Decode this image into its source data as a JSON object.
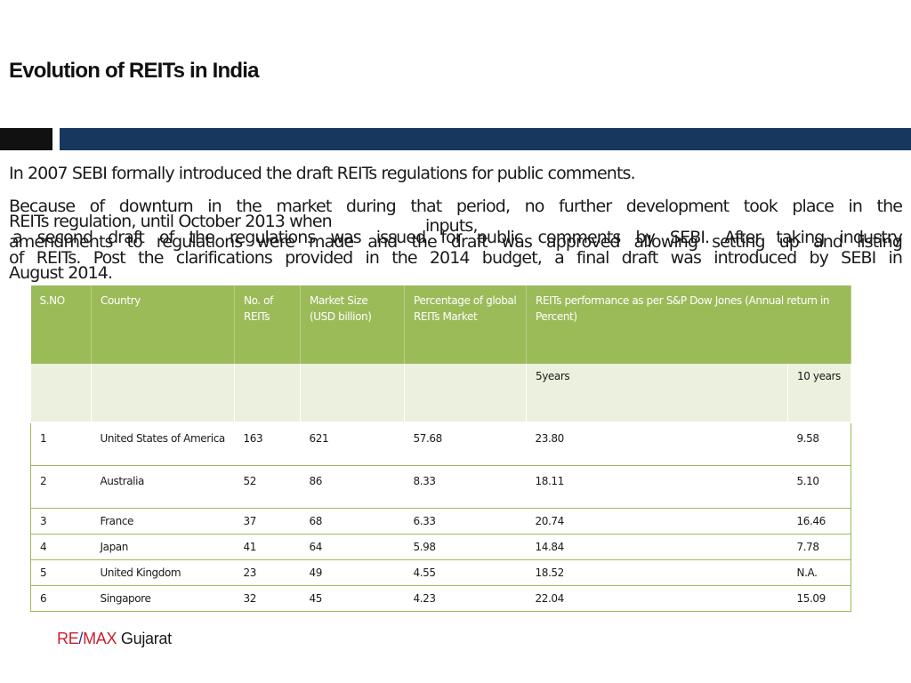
{
  "slide": {
    "title": "Evolution of REITs in India",
    "paragraph_1": "In 2007 SEBI formally introduced the draft REITs regulations for public comments.",
    "paragraph_2_line_1": "Because of downturn in the market during that period, no further development took place in the",
    "paragraph_2_line_2": "REITs regulation, until October 2013 when",
    "paragraph_2_line_3": " a second draft of the regulations was issued for public comments by SEBI. After taking industry",
    "paragraph_2_line_4": "inputs,",
    "paragraph_3_line_1": "amendments to regulations were made and the draft was approved allowing setting up and listing",
    "paragraph_3_line_2": "of REITs. Post the clarifications provided in the 2014 budget, a final draft was introduced by SEBI in",
    "paragraph_3_line_3": "August 2014."
  },
  "table": {
    "headers": {
      "sno": "S.NO",
      "country": "Country",
      "num_reits": "No. of REITs",
      "market_size": "Market Size (USD billion)",
      "pct_global": "Percentage of global REITs Market",
      "performance": "REITs performance as per S&P Dow Jones (Annual return in Percent)"
    },
    "subheaders": {
      "five_years": "5years",
      "ten_years": "10 years"
    },
    "rows": [
      {
        "sno": "1",
        "country": "United States of America",
        "num_reits": "163",
        "market_size": "621",
        "pct_global": "57.68",
        "five_years": "23.80",
        "ten_years": "9.58"
      },
      {
        "sno": "2",
        "country": "Australia",
        "num_reits": "52",
        "market_size": "86",
        "pct_global": "8.33",
        "five_years": "18.11",
        "ten_years": "5.10"
      },
      {
        "sno": "3",
        "country": "France",
        "num_reits": "37",
        "market_size": "68",
        "pct_global": "6.33",
        "five_years": "20.74",
        "ten_years": "16.46"
      },
      {
        "sno": "4",
        "country": "Japan",
        "num_reits": "41",
        "market_size": "64",
        "pct_global": "5.98",
        "five_years": "14.84",
        "ten_years": "7.78"
      },
      {
        "sno": "5",
        "country": "United Kingdom",
        "num_reits": "23",
        "market_size": "49",
        "pct_global": "4.55",
        "five_years": "18.52",
        "ten_years": "N.A."
      },
      {
        "sno": "6",
        "country": "Singapore",
        "num_reits": "32",
        "market_size": "45",
        "pct_global": "4.23",
        "five_years": "22.04",
        "ten_years": "15.09"
      }
    ]
  },
  "footer": {
    "brand_re": "RE",
    "brand_slash": "/",
    "brand_max": "MAX",
    "brand_city": " Gujarat"
  },
  "colors": {
    "header_green": "#9bbb59",
    "subheader_green": "#ebf1de",
    "navy_bar": "#17375e",
    "black_bar": "#111111",
    "brand_red": "#cc1f2d",
    "brand_blue": "#1f3c8f"
  }
}
